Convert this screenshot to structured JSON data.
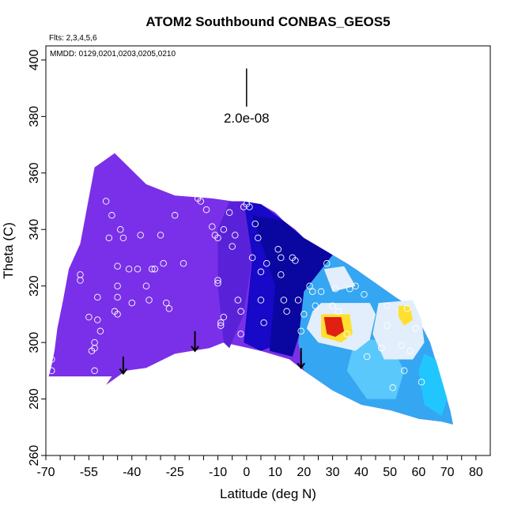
{
  "chart_data": {
    "type": "heatmap",
    "title": "ATOM2 Southbound CONBAS_GEOS5",
    "annotations": {
      "flights": "Flts: 2,3,4,5,6",
      "dates": "MMDD: 0129,0201,0203,0205,0210",
      "scale_label": "2.0e-08"
    },
    "xlabel": "Latitude (deg N)",
    "ylabel": "Theta (C)",
    "xlim": [
      -70,
      85
    ],
    "ylim": [
      260,
      405
    ],
    "xticks": [
      -70,
      -55,
      -40,
      -25,
      -10,
      0,
      10,
      20,
      30,
      40,
      50,
      60,
      70,
      80
    ],
    "xtick_labels": [
      "-70",
      "-55",
      "-40",
      "-25",
      "-10",
      "0",
      "10",
      "20",
      "30",
      "40",
      "50",
      "60",
      "70",
      "80"
    ],
    "xminor_step": 5,
    "yticks": [
      260,
      280,
      300,
      320,
      340,
      360,
      380,
      400
    ],
    "ytick_labels": [
      "260",
      "280",
      "300",
      "320",
      "340",
      "360",
      "380",
      "400"
    ],
    "scale_bar": {
      "x": 0,
      "y_bottom": 383.5,
      "y_top": 397
    },
    "colors": {
      "violet": "#7a30e8",
      "purple": "#5a22d8",
      "blue": "#1808c8",
      "navy": "#0a06a0",
      "lightblue": "#35a6f2",
      "skyblue": "#5ac8fa",
      "cyan": "#22c6ff",
      "pale": "#e2eefb",
      "red": "#e02010",
      "yellow": "#ffe030"
    },
    "field_outline": [
      [
        -69,
        288
      ],
      [
        -47,
        288
      ],
      [
        -49,
        285
      ],
      [
        -42,
        290
      ],
      [
        -35,
        291
      ],
      [
        -25,
        296
      ],
      [
        -13,
        298
      ],
      [
        -8,
        300
      ],
      [
        5,
        297
      ],
      [
        15,
        294
      ],
      [
        20,
        290
      ],
      [
        30,
        283
      ],
      [
        40,
        278
      ],
      [
        50,
        276
      ],
      [
        57,
        275
      ],
      [
        60,
        273
      ],
      [
        68,
        272
      ],
      [
        72,
        271
      ],
      [
        71,
        276
      ],
      [
        67,
        290
      ],
      [
        64,
        300
      ],
      [
        60,
        308
      ],
      [
        58,
        312
      ],
      [
        52,
        316
      ],
      [
        45,
        321
      ],
      [
        38,
        326
      ],
      [
        35,
        328
      ],
      [
        30,
        331
      ],
      [
        25,
        334
      ],
      [
        20,
        337
      ],
      [
        17,
        340
      ],
      [
        13,
        343
      ],
      [
        10,
        346
      ],
      [
        5,
        349
      ],
      [
        -5,
        350
      ],
      [
        -12,
        351
      ],
      [
        -25,
        352
      ],
      [
        -35,
        356
      ],
      [
        -46,
        367
      ],
      [
        -53,
        362
      ],
      [
        -58,
        335
      ],
      [
        -62,
        326
      ],
      [
        -64,
        315
      ],
      [
        -66,
        305
      ],
      [
        -67,
        297
      ],
      [
        -68,
        292
      ]
    ],
    "field_regions": [
      {
        "color": "purple",
        "polygon": [
          [
            -6,
            350
          ],
          [
            -1,
            350
          ],
          [
            2,
            330
          ],
          [
            -1,
            310
          ],
          [
            -6,
            298
          ],
          [
            -8,
            300
          ],
          [
            -10,
            320
          ],
          [
            -10,
            340
          ]
        ]
      },
      {
        "color": "blue",
        "polygon": [
          [
            -1,
            350
          ],
          [
            5,
            349
          ],
          [
            13,
            343
          ],
          [
            15,
            320
          ],
          [
            13,
            300
          ],
          [
            5,
            297
          ],
          [
            -1,
            300
          ],
          [
            2,
            330
          ]
        ]
      },
      {
        "color": "navy",
        "polygon": [
          [
            2,
            345
          ],
          [
            13,
            343
          ],
          [
            20,
            337
          ],
          [
            25,
            334
          ],
          [
            30,
            331
          ],
          [
            22,
            318
          ],
          [
            20,
            308
          ],
          [
            16,
            295
          ],
          [
            8,
            297
          ],
          [
            10,
            320
          ]
        ]
      },
      {
        "color": "lightblue",
        "polygon": [
          [
            20,
            318
          ],
          [
            30,
            331
          ],
          [
            38,
            326
          ],
          [
            45,
            321
          ],
          [
            52,
            316
          ],
          [
            58,
            312
          ],
          [
            64,
            300
          ],
          [
            67,
            290
          ],
          [
            71,
            276
          ],
          [
            72,
            271
          ],
          [
            68,
            272
          ],
          [
            60,
            273
          ],
          [
            50,
            276
          ],
          [
            40,
            278
          ],
          [
            30,
            283
          ],
          [
            20,
            290
          ],
          [
            18,
            300
          ]
        ]
      },
      {
        "color": "skyblue",
        "polygon": [
          [
            38,
            302
          ],
          [
            50,
            300
          ],
          [
            55,
            290
          ],
          [
            52,
            280
          ],
          [
            42,
            280
          ],
          [
            35,
            290
          ]
        ]
      },
      {
        "color": "cyan",
        "polygon": [
          [
            62,
            296
          ],
          [
            66,
            294
          ],
          [
            70,
            280
          ],
          [
            68,
            274
          ],
          [
            62,
            278
          ],
          [
            60,
            290
          ]
        ]
      },
      {
        "color": "pale",
        "polygon": [
          [
            23,
            311
          ],
          [
            26,
            314
          ],
          [
            43,
            314
          ],
          [
            45,
            310
          ],
          [
            43,
            301
          ],
          [
            38,
            297
          ],
          [
            25,
            300
          ],
          [
            21,
            305
          ]
        ]
      },
      {
        "color": "pale",
        "polygon": [
          [
            46,
            314
          ],
          [
            58,
            315
          ],
          [
            61,
            308
          ],
          [
            62,
            300
          ],
          [
            58,
            294
          ],
          [
            48,
            294
          ],
          [
            44,
            303
          ]
        ]
      },
      {
        "color": "pale",
        "polygon": [
          [
            27,
            326
          ],
          [
            34,
            327
          ],
          [
            38,
            320
          ],
          [
            30,
            318
          ]
        ]
      },
      {
        "color": "yellow",
        "polygon": [
          [
            26,
            310
          ],
          [
            36,
            310
          ],
          [
            37,
            303
          ],
          [
            33,
            300
          ],
          [
            26,
            302
          ]
        ]
      },
      {
        "color": "red",
        "polygon": [
          [
            27,
            309
          ],
          [
            33,
            309
          ],
          [
            34,
            304
          ],
          [
            31,
            302
          ],
          [
            28,
            303
          ]
        ]
      },
      {
        "color": "yellow",
        "polygon": [
          [
            53,
            313
          ],
          [
            57,
            313
          ],
          [
            58,
            308
          ],
          [
            55,
            306
          ],
          [
            53,
            309
          ]
        ]
      }
    ],
    "arrows": [
      {
        "x": -43,
        "y_top": 295,
        "y_bottom": 289
      },
      {
        "x": -18,
        "y_top": 304,
        "y_bottom": 297
      },
      {
        "x": 19,
        "y_top": 298,
        "y_bottom": 291
      }
    ],
    "points": [
      [
        -68,
        294
      ],
      [
        -68,
        290
      ],
      [
        -58,
        324
      ],
      [
        -58,
        322
      ],
      [
        -55,
        309
      ],
      [
        -54,
        297
      ],
      [
        -53,
        298
      ],
      [
        -53,
        300
      ],
      [
        -53,
        290
      ],
      [
        -52,
        308
      ],
      [
        -52,
        316
      ],
      [
        -51,
        304
      ],
      [
        -49,
        350
      ],
      [
        -48,
        337
      ],
      [
        -47,
        345
      ],
      [
        -46,
        311
      ],
      [
        -45,
        327
      ],
      [
        -45,
        320
      ],
      [
        -45,
        316
      ],
      [
        -45,
        310
      ],
      [
        -44,
        340
      ],
      [
        -43,
        337
      ],
      [
        -41,
        326
      ],
      [
        -40,
        314
      ],
      [
        -38,
        326
      ],
      [
        -37,
        338
      ],
      [
        -35,
        320
      ],
      [
        -34,
        315
      ],
      [
        -33,
        326
      ],
      [
        -32,
        326
      ],
      [
        -30,
        338
      ],
      [
        -29,
        328
      ],
      [
        -28,
        314
      ],
      [
        -27,
        312
      ],
      [
        -25,
        345
      ],
      [
        -22,
        328
      ],
      [
        -17,
        351
      ],
      [
        -16,
        350
      ],
      [
        -14,
        347
      ],
      [
        -12,
        341
      ],
      [
        -11,
        338
      ],
      [
        -10,
        337
      ],
      [
        -10,
        322
      ],
      [
        -10,
        321
      ],
      [
        -9,
        307
      ],
      [
        -9,
        306
      ],
      [
        -8,
        309
      ],
      [
        -8,
        340
      ],
      [
        -6,
        346
      ],
      [
        -5,
        334
      ],
      [
        -4,
        338
      ],
      [
        -3,
        315
      ],
      [
        -2,
        311
      ],
      [
        -2,
        303
      ],
      [
        -1,
        348
      ],
      [
        0,
        349
      ],
      [
        1,
        348
      ],
      [
        2,
        330
      ],
      [
        3,
        342
      ],
      [
        4,
        337
      ],
      [
        5,
        325
      ],
      [
        5,
        315
      ],
      [
        6,
        307
      ],
      [
        7,
        328
      ],
      [
        9,
        349
      ],
      [
        10,
        349
      ],
      [
        11,
        333
      ],
      [
        12,
        330
      ],
      [
        12,
        324
      ],
      [
        13,
        315
      ],
      [
        14,
        311
      ],
      [
        16,
        330
      ],
      [
        17,
        329
      ],
      [
        18,
        315
      ],
      [
        19,
        304
      ],
      [
        20,
        310
      ],
      [
        22,
        320
      ],
      [
        23,
        318
      ],
      [
        24,
        313
      ],
      [
        26,
        318
      ],
      [
        28,
        328
      ],
      [
        30,
        313
      ],
      [
        31,
        319
      ],
      [
        32,
        311
      ],
      [
        35,
        303
      ],
      [
        36,
        319
      ],
      [
        38,
        320
      ],
      [
        41,
        317
      ],
      [
        42,
        295
      ],
      [
        47,
        298
      ],
      [
        49,
        313
      ],
      [
        49,
        306
      ],
      [
        54,
        299
      ],
      [
        55,
        290
      ],
      [
        57,
        297
      ],
      [
        59,
        305
      ],
      [
        60,
        313
      ],
      [
        61,
        286
      ],
      [
        51,
        284
      ],
      [
        56,
        312
      ]
    ]
  }
}
